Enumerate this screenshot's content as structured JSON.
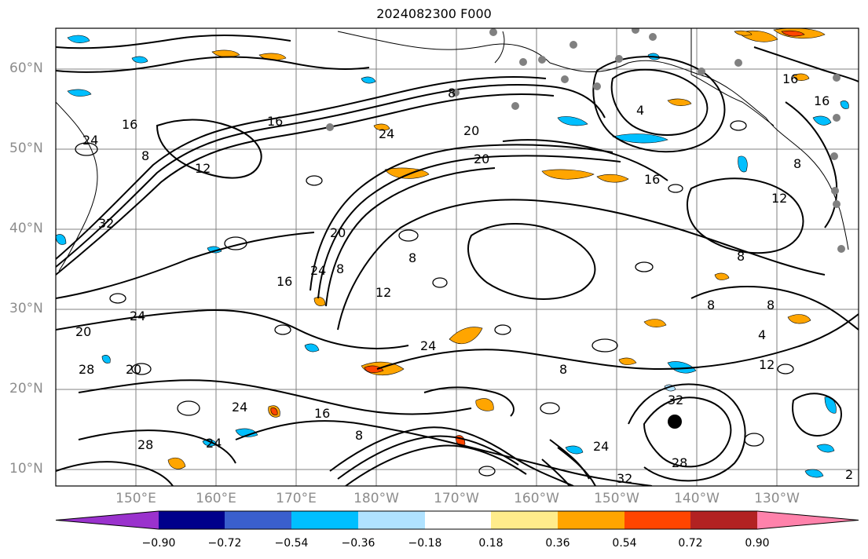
{
  "title": "2024082300 F000",
  "lat_labels": [
    "60°N",
    "50°N",
    "40°N",
    "30°N",
    "20°N",
    "10°N"
  ],
  "lon_labels": [
    "150°E",
    "160°E",
    "170°E",
    "180°W",
    "170°W",
    "160°W",
    "150°W",
    "140°W",
    "130°W"
  ],
  "colorbar": {
    "labels": [
      "−0.90",
      "−0.72",
      "−0.54",
      "−0.36",
      "−0.18",
      "0.18",
      "0.36",
      "0.54",
      "0.72",
      "0.90"
    ],
    "colors": [
      "#9a32cd",
      "#00008b",
      "#3a5fcd",
      "#00bfff",
      "#b0e2ff",
      "#ffffff",
      "#ffec8b",
      "#ffa500",
      "#ff4500",
      "#b22222",
      "#ff82ab"
    ]
  },
  "contour_labels": [
    "16",
    "16",
    "8",
    "12",
    "24",
    "32",
    "8",
    "20",
    "20",
    "24",
    "16",
    "20",
    "24",
    "8",
    "12",
    "16",
    "24",
    "8",
    "4",
    "16",
    "12",
    "8",
    "8",
    "4",
    "8",
    "12",
    "16",
    "8",
    "32",
    "28",
    "32",
    "24",
    "28",
    "20",
    "24",
    "28",
    "20",
    "8",
    "24",
    "16",
    "8",
    "24",
    "2"
  ],
  "shading_colors": {
    "positive": "#ffa500",
    "positive_strong": "#ff4500",
    "negative": "#00bfff",
    "negative_weak": "#b0e2ff"
  }
}
